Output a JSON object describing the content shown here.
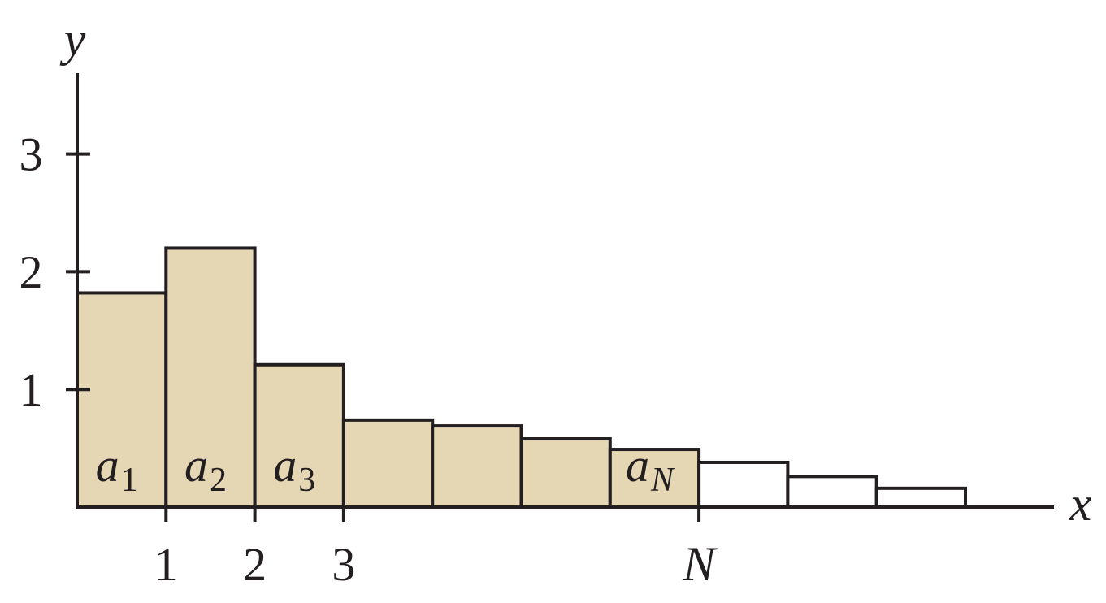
{
  "chart_data": {
    "type": "bar",
    "xlabel": "x",
    "ylabel": "y",
    "ylim": [
      0,
      3.7
    ],
    "xlim": [
      0,
      11
    ],
    "y_ticks": [
      1,
      2,
      3
    ],
    "x_tick_labels": [
      {
        "x": 1,
        "label": "1"
      },
      {
        "x": 2,
        "label": "2"
      },
      {
        "x": 3,
        "label": "3"
      },
      {
        "x": 7,
        "label": "N"
      }
    ],
    "bars": [
      {
        "x0": 0,
        "x1": 1,
        "value": 1.82,
        "shaded": true,
        "label": "a",
        "sub": "1"
      },
      {
        "x0": 1,
        "x1": 2,
        "value": 2.2,
        "shaded": true,
        "label": "a",
        "sub": "2"
      },
      {
        "x0": 2,
        "x1": 3,
        "value": 1.21,
        "shaded": true,
        "label": "a",
        "sub": "3"
      },
      {
        "x0": 3,
        "x1": 4,
        "value": 0.74,
        "shaded": true,
        "label": "",
        "sub": ""
      },
      {
        "x0": 4,
        "x1": 5,
        "value": 0.69,
        "shaded": true,
        "label": "",
        "sub": ""
      },
      {
        "x0": 5,
        "x1": 6,
        "value": 0.58,
        "shaded": true,
        "label": "",
        "sub": ""
      },
      {
        "x0": 6,
        "x1": 7,
        "value": 0.49,
        "shaded": true,
        "label": "a",
        "sub": "N"
      },
      {
        "x0": 7,
        "x1": 8,
        "value": 0.38,
        "shaded": false,
        "label": "",
        "sub": ""
      },
      {
        "x0": 8,
        "x1": 9,
        "value": 0.26,
        "shaded": false,
        "label": "",
        "sub": ""
      },
      {
        "x0": 9,
        "x1": 10,
        "value": 0.16,
        "shaded": false,
        "label": "",
        "sub": ""
      }
    ],
    "colors": {
      "shaded_fill": "#e5d6b4",
      "unshaded_fill": "#ffffff",
      "stroke": "#231f20"
    }
  }
}
